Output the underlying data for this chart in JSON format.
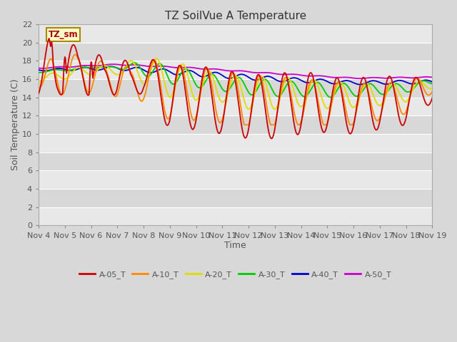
{
  "title": "TZ SoilVue A Temperature",
  "xlabel": "Time",
  "ylabel": "Soil Temperature (C)",
  "ylim": [
    0,
    22
  ],
  "yticks": [
    0,
    2,
    4,
    6,
    8,
    10,
    12,
    14,
    16,
    18,
    20,
    22
  ],
  "x_labels": [
    "Nov 4",
    "Nov 5",
    "Nov 6",
    "Nov 7",
    "Nov 8",
    "Nov 9",
    "Nov 10",
    "Nov 11",
    "Nov 12",
    "Nov 13",
    "Nov 14",
    "Nov 15",
    "Nov 16",
    "Nov 17",
    "Nov 18",
    "Nov 19"
  ],
  "annotation": "TZ_sm",
  "series_colors": {
    "A-05_T": "#cc0000",
    "A-10_T": "#ff8800",
    "A-20_T": "#dddd00",
    "A-30_T": "#00cc00",
    "A-40_T": "#0000cc",
    "A-50_T": "#cc00cc"
  },
  "band_colors": [
    "#e8e8e8",
    "#d8d8d8"
  ],
  "grid_color": "#ffffff",
  "title_fontsize": 11,
  "label_fontsize": 9,
  "tick_fontsize": 8
}
